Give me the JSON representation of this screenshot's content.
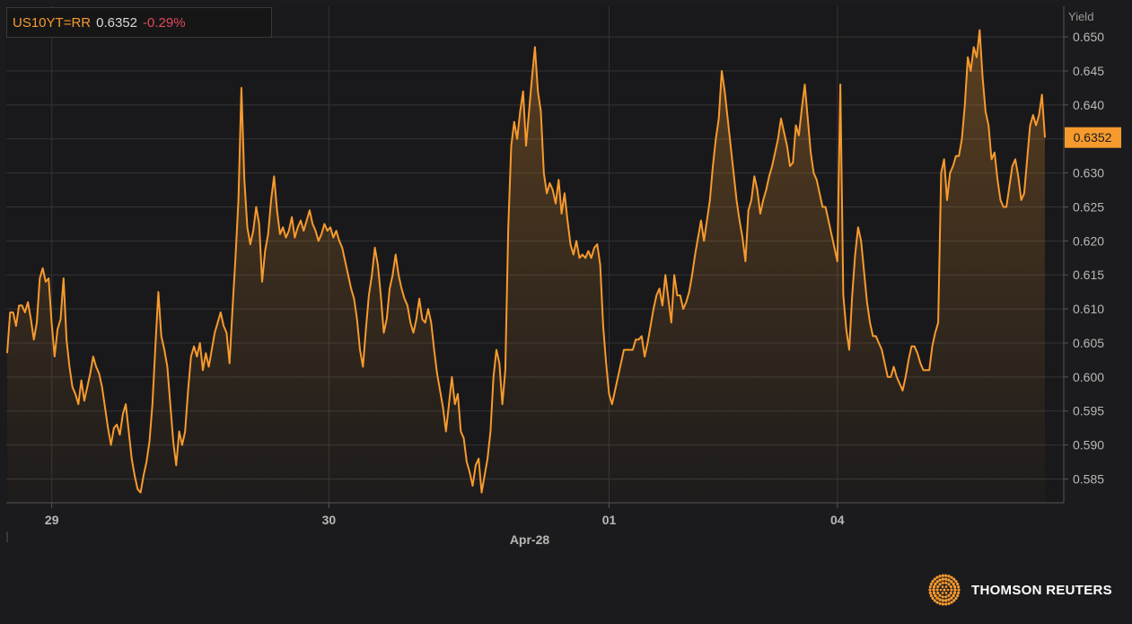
{
  "ticker": {
    "symbol": "US10YT=RR",
    "value": "0.6352",
    "change": "-0.29%"
  },
  "brand": {
    "name": "THOMSON REUTERS",
    "icon": "thomson-reuters-dot-logo"
  },
  "colors": {
    "line": "#f79a2e",
    "background": "#1b1b1d",
    "grid": "#343436",
    "axis_text": "#b8b8b8",
    "negative": "#e0485a"
  },
  "chart_data": {
    "type": "area",
    "y_axis": {
      "title": "Yield",
      "ticks": [
        "0.585",
        "0.590",
        "0.595",
        "0.600",
        "0.605",
        "0.610",
        "0.615",
        "0.620",
        "0.625",
        "0.630",
        "0.635",
        "0.640",
        "0.645",
        "0.650"
      ],
      "range": [
        0.5815,
        0.6545
      ],
      "position": "right"
    },
    "x_axis": {
      "ticks": [
        "29",
        "30",
        "01",
        "04"
      ],
      "month_label": "Apr-28"
    },
    "last_value_label": "0.6352",
    "grid": true,
    "series": [
      {
        "values": [
          0.6035,
          0.6095,
          0.6095,
          0.6075,
          0.6105,
          0.6105,
          0.6095,
          0.611,
          0.6085,
          0.6055,
          0.608,
          0.6145,
          0.616,
          0.614,
          0.6145,
          0.608,
          0.603,
          0.607,
          0.6085,
          0.6145,
          0.6055,
          0.6015,
          0.5985,
          0.5975,
          0.596,
          0.5995,
          0.5965,
          0.5985,
          0.6005,
          0.603,
          0.6015,
          0.6005,
          0.5985,
          0.5955,
          0.5925,
          0.59,
          0.5925,
          0.593,
          0.5915,
          0.5945,
          0.596,
          0.592,
          0.588,
          0.5855,
          0.5835,
          0.583,
          0.5855,
          0.5875,
          0.5905,
          0.596,
          0.6045,
          0.6125,
          0.606,
          0.604,
          0.6015,
          0.596,
          0.5905,
          0.587,
          0.592,
          0.59,
          0.592,
          0.598,
          0.603,
          0.6045,
          0.603,
          0.605,
          0.601,
          0.6035,
          0.6015,
          0.604,
          0.6065,
          0.608,
          0.6095,
          0.6075,
          0.6065,
          0.602,
          0.61,
          0.6175,
          0.626,
          0.6425,
          0.629,
          0.622,
          0.6195,
          0.6215,
          0.625,
          0.6225,
          0.614,
          0.6185,
          0.621,
          0.626,
          0.6295,
          0.6245,
          0.621,
          0.622,
          0.6205,
          0.6215,
          0.6235,
          0.6205,
          0.622,
          0.623,
          0.6215,
          0.623,
          0.6245,
          0.6225,
          0.6215,
          0.62,
          0.621,
          0.6225,
          0.6215,
          0.622,
          0.6205,
          0.6215,
          0.62,
          0.619,
          0.617,
          0.615,
          0.613,
          0.6115,
          0.6085,
          0.604,
          0.6015,
          0.607,
          0.612,
          0.615,
          0.619,
          0.6165,
          0.612,
          0.6065,
          0.6085,
          0.613,
          0.615,
          0.618,
          0.615,
          0.613,
          0.6115,
          0.6105,
          0.608,
          0.6065,
          0.6085,
          0.6115,
          0.6085,
          0.608,
          0.61,
          0.608,
          0.604,
          0.6005,
          0.598,
          0.5955,
          0.592,
          0.596,
          0.6,
          0.596,
          0.5975,
          0.592,
          0.591,
          0.5875,
          0.586,
          0.584,
          0.587,
          0.588,
          0.583,
          0.5855,
          0.588,
          0.592,
          0.6,
          0.604,
          0.602,
          0.596,
          0.601,
          0.622,
          0.634,
          0.6375,
          0.635,
          0.639,
          0.642,
          0.634,
          0.639,
          0.644,
          0.6485,
          0.642,
          0.639,
          0.63,
          0.627,
          0.6285,
          0.6275,
          0.6255,
          0.629,
          0.624,
          0.627,
          0.623,
          0.6195,
          0.618,
          0.62,
          0.6175,
          0.618,
          0.6175,
          0.6185,
          0.6175,
          0.619,
          0.6195,
          0.6165,
          0.6075,
          0.602,
          0.5975,
          0.596,
          0.598,
          0.6,
          0.602,
          0.604,
          0.604,
          0.604,
          0.604,
          0.6055,
          0.6055,
          0.606,
          0.603,
          0.605,
          0.6075,
          0.61,
          0.612,
          0.613,
          0.6105,
          0.615,
          0.6115,
          0.608,
          0.615,
          0.612,
          0.612,
          0.61,
          0.611,
          0.6125,
          0.615,
          0.618,
          0.6205,
          0.623,
          0.62,
          0.623,
          0.626,
          0.631,
          0.635,
          0.638,
          0.645,
          0.642,
          0.638,
          0.634,
          0.63,
          0.626,
          0.623,
          0.6205,
          0.617,
          0.6245,
          0.626,
          0.6295,
          0.6275,
          0.624,
          0.626,
          0.6275,
          0.6295,
          0.631,
          0.633,
          0.635,
          0.638,
          0.636,
          0.634,
          0.631,
          0.6315,
          0.637,
          0.6355,
          0.6395,
          0.643,
          0.638,
          0.633,
          0.63,
          0.629,
          0.627,
          0.625,
          0.625,
          0.623,
          0.621,
          0.619,
          0.617,
          0.643,
          0.612,
          0.607,
          0.604,
          0.612,
          0.618,
          0.622,
          0.62,
          0.6155,
          0.611,
          0.608,
          0.606,
          0.606,
          0.605,
          0.604,
          0.602,
          0.6,
          0.6,
          0.6015,
          0.6,
          0.599,
          0.598,
          0.6,
          0.6025,
          0.6045,
          0.6045,
          0.6035,
          0.602,
          0.601,
          0.601,
          0.601,
          0.6045,
          0.6065,
          0.608,
          0.63,
          0.632,
          0.626,
          0.63,
          0.631,
          0.6325,
          0.6325,
          0.635,
          0.64,
          0.647,
          0.645,
          0.6485,
          0.647,
          0.651,
          0.644,
          0.639,
          0.637,
          0.632,
          0.633,
          0.629,
          0.626,
          0.625,
          0.625,
          0.628,
          0.631,
          0.632,
          0.6295,
          0.626,
          0.627,
          0.632,
          0.637,
          0.6385,
          0.637,
          0.6385,
          0.6415,
          0.6352
        ]
      }
    ]
  }
}
